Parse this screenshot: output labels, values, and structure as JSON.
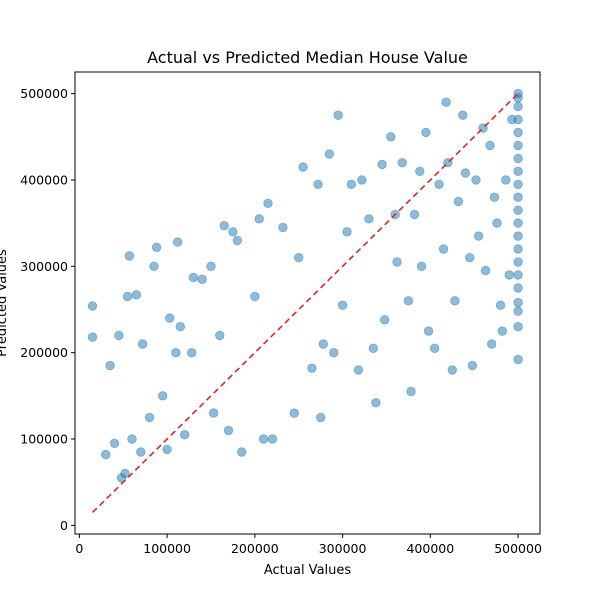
{
  "chart_data": {
    "type": "scatter",
    "title": "Actual vs Predicted Median House Value",
    "xlabel": "Actual Values",
    "ylabel": "Predicted Values",
    "xlim": [
      -5000,
      525000
    ],
    "ylim": [
      -10000,
      525000
    ],
    "xticks": [
      0,
      100000,
      200000,
      300000,
      400000,
      500000
    ],
    "yticks": [
      0,
      100000,
      200000,
      300000,
      400000,
      500000
    ],
    "xtick_labels": [
      "0",
      "100000",
      "200000",
      "300000",
      "400000",
      "500000"
    ],
    "ytick_labels": [
      "0",
      "100000",
      "200000",
      "300000",
      "400000",
      "500000"
    ],
    "grid": false,
    "reference_line": {
      "x": [
        14999,
        500001
      ],
      "y": [
        14999,
        500001
      ],
      "style": "dashed",
      "color": "#d62728"
    },
    "series": [
      {
        "color": "#1f77b4",
        "alpha": 0.5,
        "points": [
          [
            15000,
            254000
          ],
          [
            15000,
            218000
          ],
          [
            30000,
            82000
          ],
          [
            35000,
            185000
          ],
          [
            40000,
            95000
          ],
          [
            45000,
            220000
          ],
          [
            48000,
            55000
          ],
          [
            52000,
            60000
          ],
          [
            55000,
            265000
          ],
          [
            57000,
            312000
          ],
          [
            60000,
            100000
          ],
          [
            65000,
            267000
          ],
          [
            70000,
            85000
          ],
          [
            72000,
            210000
          ],
          [
            80000,
            125000
          ],
          [
            85000,
            300000
          ],
          [
            88000,
            322000
          ],
          [
            95000,
            150000
          ],
          [
            100000,
            88000
          ],
          [
            103000,
            240000
          ],
          [
            110000,
            200000
          ],
          [
            112000,
            328000
          ],
          [
            115000,
            230000
          ],
          [
            120000,
            105000
          ],
          [
            128000,
            200000
          ],
          [
            130000,
            287000
          ],
          [
            140000,
            285000
          ],
          [
            150000,
            300000
          ],
          [
            153000,
            130000
          ],
          [
            160000,
            220000
          ],
          [
            165000,
            347000
          ],
          [
            170000,
            110000
          ],
          [
            175000,
            340000
          ],
          [
            180000,
            330000
          ],
          [
            185000,
            85000
          ],
          [
            200000,
            265000
          ],
          [
            205000,
            355000
          ],
          [
            210000,
            100000
          ],
          [
            215000,
            373000
          ],
          [
            220000,
            100000
          ],
          [
            232000,
            345000
          ],
          [
            245000,
            130000
          ],
          [
            250000,
            310000
          ],
          [
            255000,
            415000
          ],
          [
            265000,
            182000
          ],
          [
            272000,
            395000
          ],
          [
            275000,
            125000
          ],
          [
            278000,
            210000
          ],
          [
            285000,
            430000
          ],
          [
            290000,
            200000
          ],
          [
            295000,
            475000
          ],
          [
            300000,
            255000
          ],
          [
            305000,
            340000
          ],
          [
            310000,
            395000
          ],
          [
            318000,
            180000
          ],
          [
            322000,
            400000
          ],
          [
            330000,
            355000
          ],
          [
            335000,
            205000
          ],
          [
            338000,
            142000
          ],
          [
            345000,
            418000
          ],
          [
            348000,
            238000
          ],
          [
            355000,
            450000
          ],
          [
            360000,
            360000
          ],
          [
            362000,
            305000
          ],
          [
            368000,
            420000
          ],
          [
            375000,
            260000
          ],
          [
            378000,
            155000
          ],
          [
            382000,
            360000
          ],
          [
            388000,
            410000
          ],
          [
            390000,
            300000
          ],
          [
            395000,
            455000
          ],
          [
            398000,
            225000
          ],
          [
            405000,
            205000
          ],
          [
            410000,
            395000
          ],
          [
            415000,
            320000
          ],
          [
            418000,
            490000
          ],
          [
            420000,
            420000
          ],
          [
            425000,
            180000
          ],
          [
            428000,
            260000
          ],
          [
            432000,
            375000
          ],
          [
            437000,
            475000
          ],
          [
            440000,
            408000
          ],
          [
            445000,
            310000
          ],
          [
            448000,
            185000
          ],
          [
            452000,
            400000
          ],
          [
            455000,
            335000
          ],
          [
            460000,
            460000
          ],
          [
            463000,
            295000
          ],
          [
            468000,
            440000
          ],
          [
            470000,
            210000
          ],
          [
            473000,
            380000
          ],
          [
            476000,
            350000
          ],
          [
            480000,
            255000
          ],
          [
            482000,
            225000
          ],
          [
            486000,
            400000
          ],
          [
            490000,
            290000
          ],
          [
            493000,
            470000
          ],
          [
            500000,
            500000
          ],
          [
            500000,
            495000
          ],
          [
            500000,
            485000
          ],
          [
            500000,
            470000
          ],
          [
            500000,
            455000
          ],
          [
            500000,
            440000
          ],
          [
            500000,
            425000
          ],
          [
            500000,
            410000
          ],
          [
            500000,
            395000
          ],
          [
            500000,
            380000
          ],
          [
            500000,
            365000
          ],
          [
            500000,
            350000
          ],
          [
            500000,
            335000
          ],
          [
            500000,
            320000
          ],
          [
            500000,
            305000
          ],
          [
            500000,
            290000
          ],
          [
            500000,
            275000
          ],
          [
            500000,
            258000
          ],
          [
            500000,
            248000
          ],
          [
            500000,
            230000
          ],
          [
            500000,
            192000
          ]
        ]
      }
    ]
  }
}
